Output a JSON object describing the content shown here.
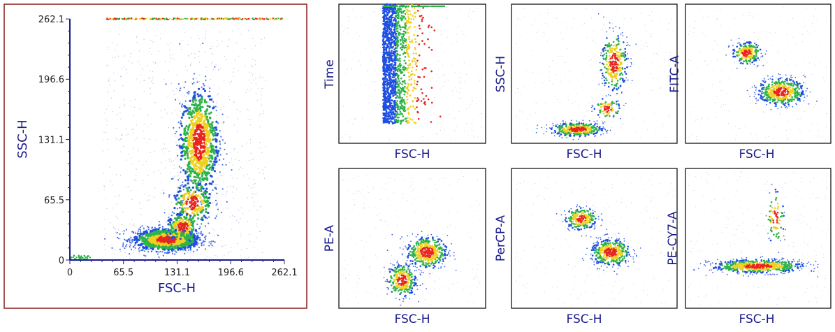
{
  "chart_data": [
    {
      "type": "scatter",
      "panel": "main",
      "xlabel": "FSC-H",
      "ylabel": "SSC-H",
      "xlim": [
        0,
        262.1
      ],
      "ylim": [
        0,
        262.1
      ],
      "xticks": [
        "0",
        "65.5",
        "131.1",
        "196.6",
        "262.1"
      ],
      "yticks": [
        "0",
        "65.5",
        "131.1",
        "196.6",
        "262.1"
      ],
      "populations": [
        {
          "cx": 118,
          "cy": 22,
          "sx": 20,
          "sy": 6,
          "n": 1300
        },
        {
          "cx": 158,
          "cy": 128,
          "sx": 12,
          "sy": 30,
          "n": 900
        },
        {
          "cx": 150,
          "cy": 62,
          "sx": 12,
          "sy": 12,
          "n": 220
        },
        {
          "cx": 138,
          "cy": 36,
          "sx": 10,
          "sy": 8,
          "n": 180
        }
      ],
      "saturation_band_y": 262.1
    },
    {
      "type": "scatter",
      "panel": "small",
      "xlabel": "FSC-H",
      "ylabel": "Time",
      "pattern": "time-bands"
    },
    {
      "type": "scatter",
      "panel": "small",
      "xlabel": "FSC-H",
      "ylabel": "SSC-H",
      "populations": [
        {
          "cx": 0.4,
          "cy": 0.1,
          "sx": 0.08,
          "sy": 0.025,
          "n": 420
        },
        {
          "cx": 0.62,
          "cy": 0.58,
          "sx": 0.04,
          "sy": 0.11,
          "n": 300
        },
        {
          "cx": 0.58,
          "cy": 0.25,
          "sx": 0.04,
          "sy": 0.04,
          "n": 90
        }
      ]
    },
    {
      "type": "scatter",
      "panel": "small",
      "xlabel": "FSC-H",
      "ylabel": "FITC-A",
      "populations": [
        {
          "cx": 0.42,
          "cy": 0.65,
          "sx": 0.05,
          "sy": 0.04,
          "n": 220
        },
        {
          "cx": 0.66,
          "cy": 0.37,
          "sx": 0.08,
          "sy": 0.05,
          "n": 480
        }
      ]
    },
    {
      "type": "scatter",
      "panel": "small",
      "xlabel": "FSC-H",
      "ylabel": "PE-A",
      "populations": [
        {
          "cx": 0.6,
          "cy": 0.4,
          "sx": 0.07,
          "sy": 0.06,
          "n": 450
        },
        {
          "cx": 0.43,
          "cy": 0.2,
          "sx": 0.05,
          "sy": 0.06,
          "n": 280
        }
      ]
    },
    {
      "type": "scatter",
      "panel": "small",
      "xlabel": "FSC-H",
      "ylabel": "PerCP-A",
      "populations": [
        {
          "cx": 0.42,
          "cy": 0.64,
          "sx": 0.05,
          "sy": 0.04,
          "n": 230
        },
        {
          "cx": 0.6,
          "cy": 0.4,
          "sx": 0.06,
          "sy": 0.05,
          "n": 420
        }
      ]
    },
    {
      "type": "scatter",
      "panel": "small",
      "xlabel": "FSC-H",
      "ylabel": "PE-CY7-A",
      "populations": [
        {
          "cx": 0.5,
          "cy": 0.3,
          "sx": 0.16,
          "sy": 0.025,
          "n": 620
        },
        {
          "cx": 0.62,
          "cy": 0.65,
          "sx": 0.03,
          "sy": 0.1,
          "n": 80
        }
      ]
    }
  ],
  "colors": {
    "frame_main": "#8b1a1a",
    "frame_small": "#000000",
    "axis_title": "#1a1a8c",
    "density_low": "#1f4fe0",
    "density_mid": "#2db34a",
    "density_high": "#f0d020",
    "density_peak": "#e8261e",
    "sparse": "#8888cc"
  }
}
